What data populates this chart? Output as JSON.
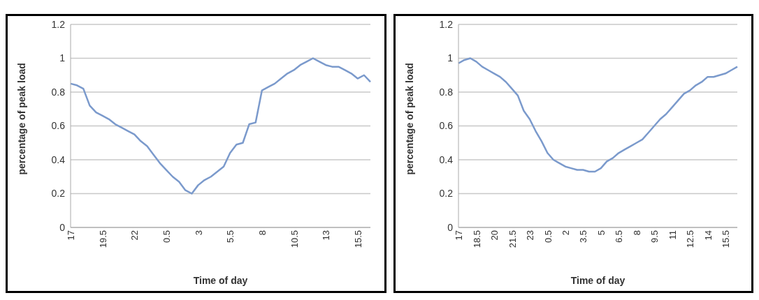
{
  "chart_data": [
    {
      "type": "line",
      "xlabel": "Time of day",
      "ylabel": "percentage of peak load",
      "categories": [
        "17",
        null,
        null,
        null,
        null,
        "19.5",
        null,
        null,
        null,
        null,
        "22",
        null,
        null,
        null,
        null,
        "0.5",
        null,
        null,
        null,
        null,
        "3",
        null,
        null,
        null,
        null,
        "5.5",
        null,
        null,
        null,
        null,
        "8",
        null,
        null,
        null,
        null,
        "10.5",
        null,
        null,
        null,
        null,
        "13",
        null,
        null,
        null,
        null,
        "15.5",
        null,
        null
      ],
      "series": [
        {
          "color": "#7b9acc",
          "values": [
            0.85,
            0.84,
            0.82,
            0.72,
            0.68,
            0.66,
            0.64,
            0.61,
            0.59,
            0.57,
            0.55,
            0.51,
            0.48,
            0.43,
            0.38,
            0.34,
            0.3,
            0.27,
            0.22,
            0.2,
            0.25,
            0.28,
            0.3,
            0.33,
            0.36,
            0.44,
            0.49,
            0.5,
            0.61,
            0.62,
            0.81,
            0.83,
            0.85,
            0.88,
            0.91,
            0.93,
            0.96,
            0.98,
            1.0,
            0.98,
            0.96,
            0.95,
            0.95,
            0.93,
            0.91,
            0.88,
            0.9,
            0.86
          ]
        }
      ],
      "ylim": [
        0,
        1.2
      ],
      "yticks": [
        0,
        0.2,
        0.4,
        0.6,
        0.8,
        1,
        1.2
      ],
      "grid": "y",
      "marker": "none",
      "line_style": "solid"
    },
    {
      "type": "line",
      "xlabel": "Time of day",
      "ylabel": "percentage of peak load",
      "categories": [
        "17",
        null,
        null,
        "18.5",
        null,
        null,
        "20",
        null,
        null,
        "21.5",
        null,
        null,
        "23",
        null,
        null,
        "0.5",
        null,
        null,
        "2",
        null,
        null,
        "3.5",
        null,
        null,
        "5",
        null,
        null,
        "6.5",
        null,
        null,
        "8",
        null,
        null,
        "9.5",
        null,
        null,
        "11",
        null,
        null,
        "12.5",
        null,
        null,
        "14",
        null,
        null,
        "15.5",
        null,
        null
      ],
      "series": [
        {
          "color": "#7b9acc",
          "values": [
            0.97,
            0.99,
            1.0,
            0.98,
            0.95,
            0.93,
            0.91,
            0.89,
            0.86,
            0.82,
            0.78,
            0.69,
            0.64,
            0.57,
            0.51,
            0.44,
            0.4,
            0.38,
            0.36,
            0.35,
            0.34,
            0.34,
            0.33,
            0.33,
            0.35,
            0.39,
            0.41,
            0.44,
            0.46,
            0.48,
            0.5,
            0.52,
            0.56,
            0.6,
            0.64,
            0.67,
            0.71,
            0.75,
            0.79,
            0.81,
            0.84,
            0.86,
            0.89,
            0.89,
            0.9,
            0.91,
            0.93,
            0.95
          ]
        }
      ],
      "ylim": [
        0,
        1.2
      ],
      "yticks": [
        0,
        0.2,
        0.4,
        0.6,
        0.8,
        1,
        1.2
      ],
      "grid": "y",
      "marker": "none",
      "line_style": "solid"
    }
  ]
}
